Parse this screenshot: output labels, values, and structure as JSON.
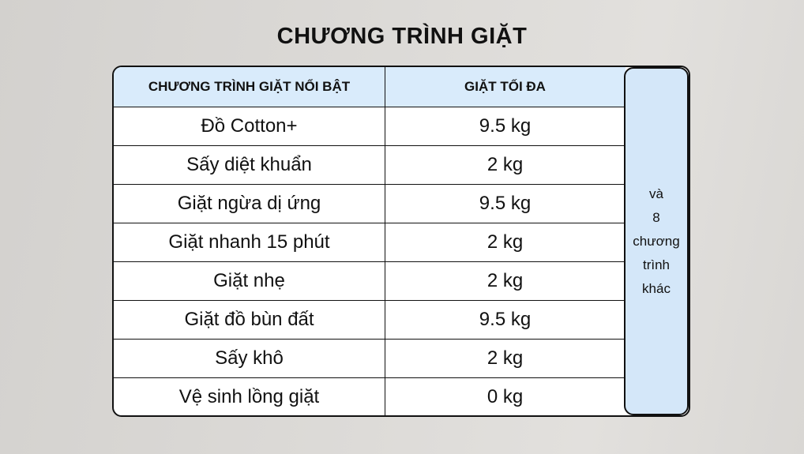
{
  "title": "CHƯƠNG TRÌNH GIẶT",
  "table": {
    "headers": [
      "CHƯƠNG TRÌNH GIẶT NỔI BẬT",
      "GIẶT TỐI ĐA"
    ],
    "rows": [
      [
        "Đồ Cotton+",
        "9.5 kg"
      ],
      [
        "Sấy diệt khuẩn",
        "2 kg"
      ],
      [
        "Giặt ngừa dị ứng",
        "9.5 kg"
      ],
      [
        "Giặt nhanh 15 phút",
        "2 kg"
      ],
      [
        "Giặt nhẹ",
        "2 kg"
      ],
      [
        "Giặt đồ bùn đất",
        "9.5 kg"
      ],
      [
        "Sấy khô",
        "2 kg"
      ],
      [
        "Vệ sinh lồng giặt",
        "0 kg"
      ]
    ]
  },
  "side_note": [
    "và",
    "8",
    "chương",
    "trình",
    "khác"
  ],
  "colors": {
    "header_bg": "#d9ebfb",
    "side_bg": "#d4e7f9"
  }
}
